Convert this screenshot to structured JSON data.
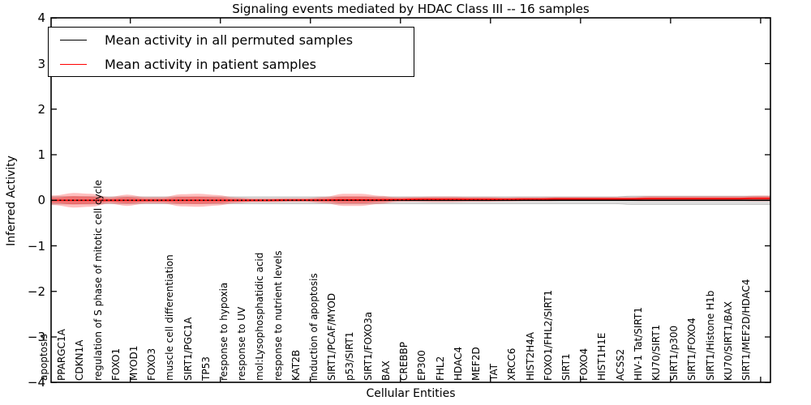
{
  "title": "Signaling events mediated by HDAC Class III -- 16 samples",
  "legend": {
    "items": [
      {
        "label": "Mean activity in all permuted samples",
        "color": "#000000"
      },
      {
        "label": "Mean activity in patient samples",
        "color": "#ff0000"
      }
    ]
  },
  "axes": {
    "ylabel": "Inferred Activity",
    "xlabel": "Cellular Entities",
    "ytick_labels": [
      "4",
      "3",
      "2",
      "1",
      "0",
      "−1",
      "−2",
      "−3",
      "−4"
    ]
  },
  "chart_data": {
    "type": "area",
    "title": "Signaling events mediated by HDAC Class III -- 16 samples",
    "xlabel": "Cellular Entities",
    "ylabel": "Inferred Activity",
    "ylim": [
      -4,
      4
    ],
    "yticks": [
      4,
      3,
      2,
      1,
      0,
      -1,
      -2,
      -3,
      -4
    ],
    "legend_position": "upper left",
    "grid": false,
    "categories": [
      "apoptosis",
      "PPARGC1A",
      "CDKN1A",
      "regulation of S phase of mitotic cell cycle",
      "FOXO1",
      "MYOD1",
      "FOXO3",
      "muscle cell differentiation",
      "SIRT1/PGC1A",
      "TP53",
      "response to hypoxia",
      "response to UV",
      "mol:Lysophosphatidic acid",
      "response to nutrient levels",
      "KAT2B",
      "induction of apoptosis",
      "SIRT1/PCAF/MYOD",
      "p53/SIRT1",
      "SIRT1/FOXO3a",
      "BAX",
      "CREBBP",
      "EP300",
      "FHL2",
      "HDAC4",
      "MEF2D",
      "TAT",
      "XRCC6",
      "HIST2H4A",
      "FOXO1/FHL2/SIRT1",
      "SIRT1",
      "FOXO4",
      "HIST1H1E",
      "ACSS2",
      "HIV-1 Tat/SIRT1",
      "KU70/SIRT1",
      "SIRT1/p300",
      "SIRT1/FOXO4",
      "SIRT1/Histone H1b",
      "KU70/SIRT1/BAX",
      "SIRT1/MEF2D/HDAC4"
    ],
    "series": [
      {
        "name": "Mean activity in all permuted samples",
        "color": "#000000",
        "line_style": "dotted",
        "fill_color": "rgba(0,0,0,0.12)",
        "edge_color": "rgba(0,0,0,0.25)",
        "mean": [
          0,
          0,
          0,
          0,
          0,
          0,
          0,
          0,
          0,
          0,
          0,
          0,
          0,
          0,
          0,
          0,
          0,
          0,
          0,
          0,
          0,
          0,
          0,
          0,
          0,
          0,
          0,
          0,
          0,
          0,
          0,
          0,
          0,
          0,
          0,
          0,
          0,
          0,
          0,
          0
        ],
        "band_halfwidth": [
          0.08,
          0.08,
          0.08,
          0.075,
          0.075,
          0.075,
          0.075,
          0.075,
          0.075,
          0.075,
          0.075,
          0.075,
          0.075,
          0.075,
          0.075,
          0.075,
          0.075,
          0.075,
          0.075,
          0.075,
          0.075,
          0.075,
          0.075,
          0.075,
          0.075,
          0.075,
          0.075,
          0.075,
          0.075,
          0.075,
          0.075,
          0.075,
          0.09,
          0.09,
          0.09,
          0.09,
          0.09,
          0.09,
          0.09,
          0.09
        ]
      },
      {
        "name": "Mean activity in patient samples",
        "color": "#ff0000",
        "line_style": "solid",
        "fill_color": "rgba(255,40,40,0.30)",
        "inner_fill_color": "rgba(255,30,30,0.38)",
        "mean": [
          0,
          0,
          0,
          0,
          0,
          0,
          0,
          0,
          0,
          0,
          0,
          0,
          0,
          0.005,
          0.005,
          0.005,
          0.01,
          0.01,
          0.01,
          0.015,
          0.02,
          0.02,
          0.02,
          0.02,
          0.02,
          0.02,
          0.025,
          0.025,
          0.03,
          0.03,
          0.03,
          0.03,
          0.03,
          0.035,
          0.035,
          0.035,
          0.035,
          0.035,
          0.035,
          0.04
        ],
        "band_halfwidth": [
          0.107,
          0.16,
          0.142,
          0.071,
          0.124,
          0.071,
          0.071,
          0.133,
          0.142,
          0.116,
          0.062,
          0.044,
          0.044,
          0.044,
          0.044,
          0.071,
          0.133,
          0.133,
          0.089,
          0.053,
          0.053,
          0.062,
          0.062,
          0.053,
          0.053,
          0.044,
          0.044,
          0.044,
          0.044,
          0.044,
          0.044,
          0.044,
          0.044,
          0.053,
          0.053,
          0.053,
          0.053,
          0.053,
          0.053,
          0.062
        ]
      }
    ]
  },
  "colors": {
    "spine": "#000000",
    "zero_line": "#000000",
    "patient_line": "#ff0000"
  }
}
